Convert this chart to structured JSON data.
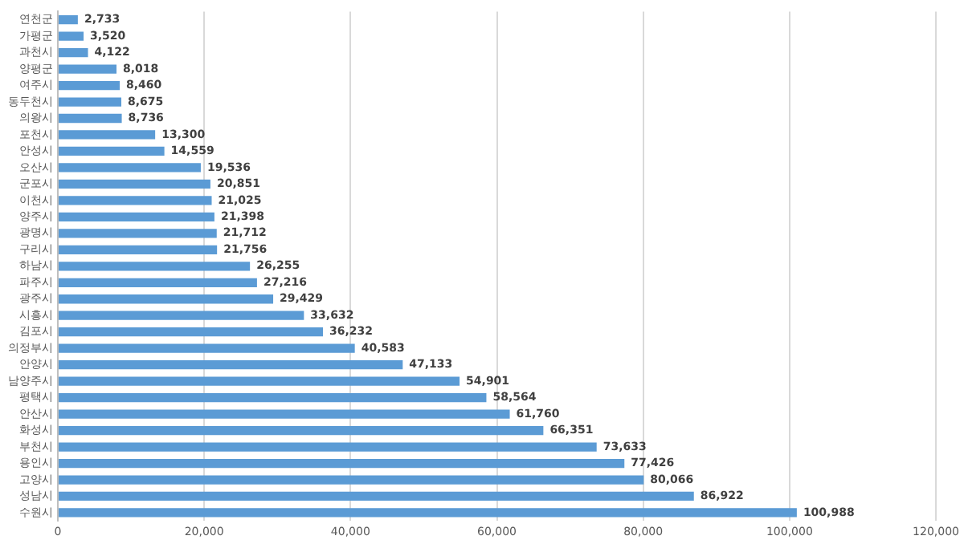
{
  "chart_data": {
    "type": "bar",
    "orientation": "horizontal",
    "categories": [
      "연천군",
      "가평군",
      "과천시",
      "양평군",
      "여주시",
      "동두천시",
      "의왕시",
      "포천시",
      "안성시",
      "오산시",
      "군포시",
      "이천시",
      "양주시",
      "광명시",
      "구리시",
      "하남시",
      "파주시",
      "광주시",
      "시흥시",
      "김포시",
      "의정부시",
      "안양시",
      "남양주시",
      "평택시",
      "안산시",
      "화성시",
      "부천시",
      "용인시",
      "고양시",
      "성남시",
      "수원시"
    ],
    "values": [
      2733,
      3520,
      4122,
      8018,
      8460,
      8675,
      8736,
      13300,
      14559,
      19536,
      20851,
      21025,
      21398,
      21712,
      21756,
      26255,
      27216,
      29429,
      33632,
      36232,
      40583,
      47133,
      54901,
      58564,
      61760,
      66351,
      73633,
      77426,
      80066,
      86922,
      100988
    ],
    "color": "#5b9bd5",
    "xlim": [
      0,
      120000
    ],
    "xticks": [
      0,
      {
        "value": 20000,
        "label": "20,000"
      },
      {
        "value": 40000,
        "label": "40,000"
      },
      {
        "value": 60000,
        "label": "60,000"
      },
      {
        "value": 80000,
        "label": "80,000"
      },
      {
        "value": 100000,
        "label": "100,000"
      },
      {
        "value": 120000,
        "label": "120,000"
      }
    ],
    "value_labels": [
      "2,733",
      "3,520",
      "4,122",
      "8,018",
      "8,460",
      "8,675",
      "8,736",
      "13,300",
      "14,559",
      "19,536",
      "20,851",
      "21,025",
      "21,398",
      "21,712",
      "21,756",
      "26,255",
      "27,216",
      "29,429",
      "33,632",
      "36,232",
      "40,583",
      "47,133",
      "54,901",
      "58,564",
      "61,760",
      "66,351",
      "73,633",
      "77,426",
      "80,066",
      "86,922",
      "100,988"
    ],
    "grid": "x"
  }
}
